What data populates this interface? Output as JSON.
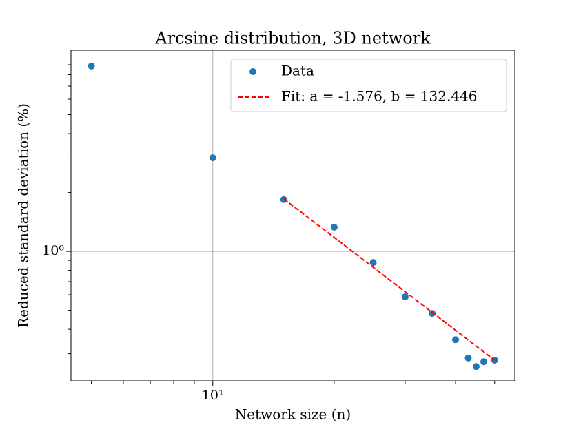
{
  "chart_data": {
    "type": "scatter",
    "title": "Arcsine distribution, 3D network",
    "xlabel": "Network size (n)",
    "ylabel": "Reduced standard deviation (%)",
    "xscale": "log",
    "yscale": "log",
    "xlim": [
      4.45,
      56.1
    ],
    "ylim": [
      0.218,
      10.67
    ],
    "xticks": [
      {
        "value": 10,
        "label": "10¹"
      }
    ],
    "yticks": [
      {
        "value": 1,
        "label": "10⁰"
      }
    ],
    "xminorticks": [
      5,
      6,
      7,
      8,
      9,
      20,
      30,
      40,
      50
    ],
    "yminorticks": [
      0.3,
      0.4,
      0.5,
      0.6,
      0.7,
      0.8,
      0.9,
      2,
      3,
      4,
      5,
      6,
      7,
      8,
      9
    ],
    "grid": true,
    "legend": "upper right",
    "series": [
      {
        "name": "Data",
        "color": "#1f77b4",
        "style": "marker",
        "x": [
          5,
          10,
          15,
          20,
          25,
          30,
          35,
          40,
          43,
          45,
          47,
          50
        ],
        "values": [
          8.86,
          3.01,
          1.84,
          1.33,
          0.878,
          0.586,
          0.482,
          0.354,
          0.285,
          0.258,
          0.273,
          0.278
        ]
      },
      {
        "name": "Fit: a = -1.576, b = 132.446",
        "color": "#ff0000",
        "style": "dashed",
        "x": [
          15,
          50
        ],
        "values": [
          1.855,
          0.278
        ]
      }
    ]
  }
}
